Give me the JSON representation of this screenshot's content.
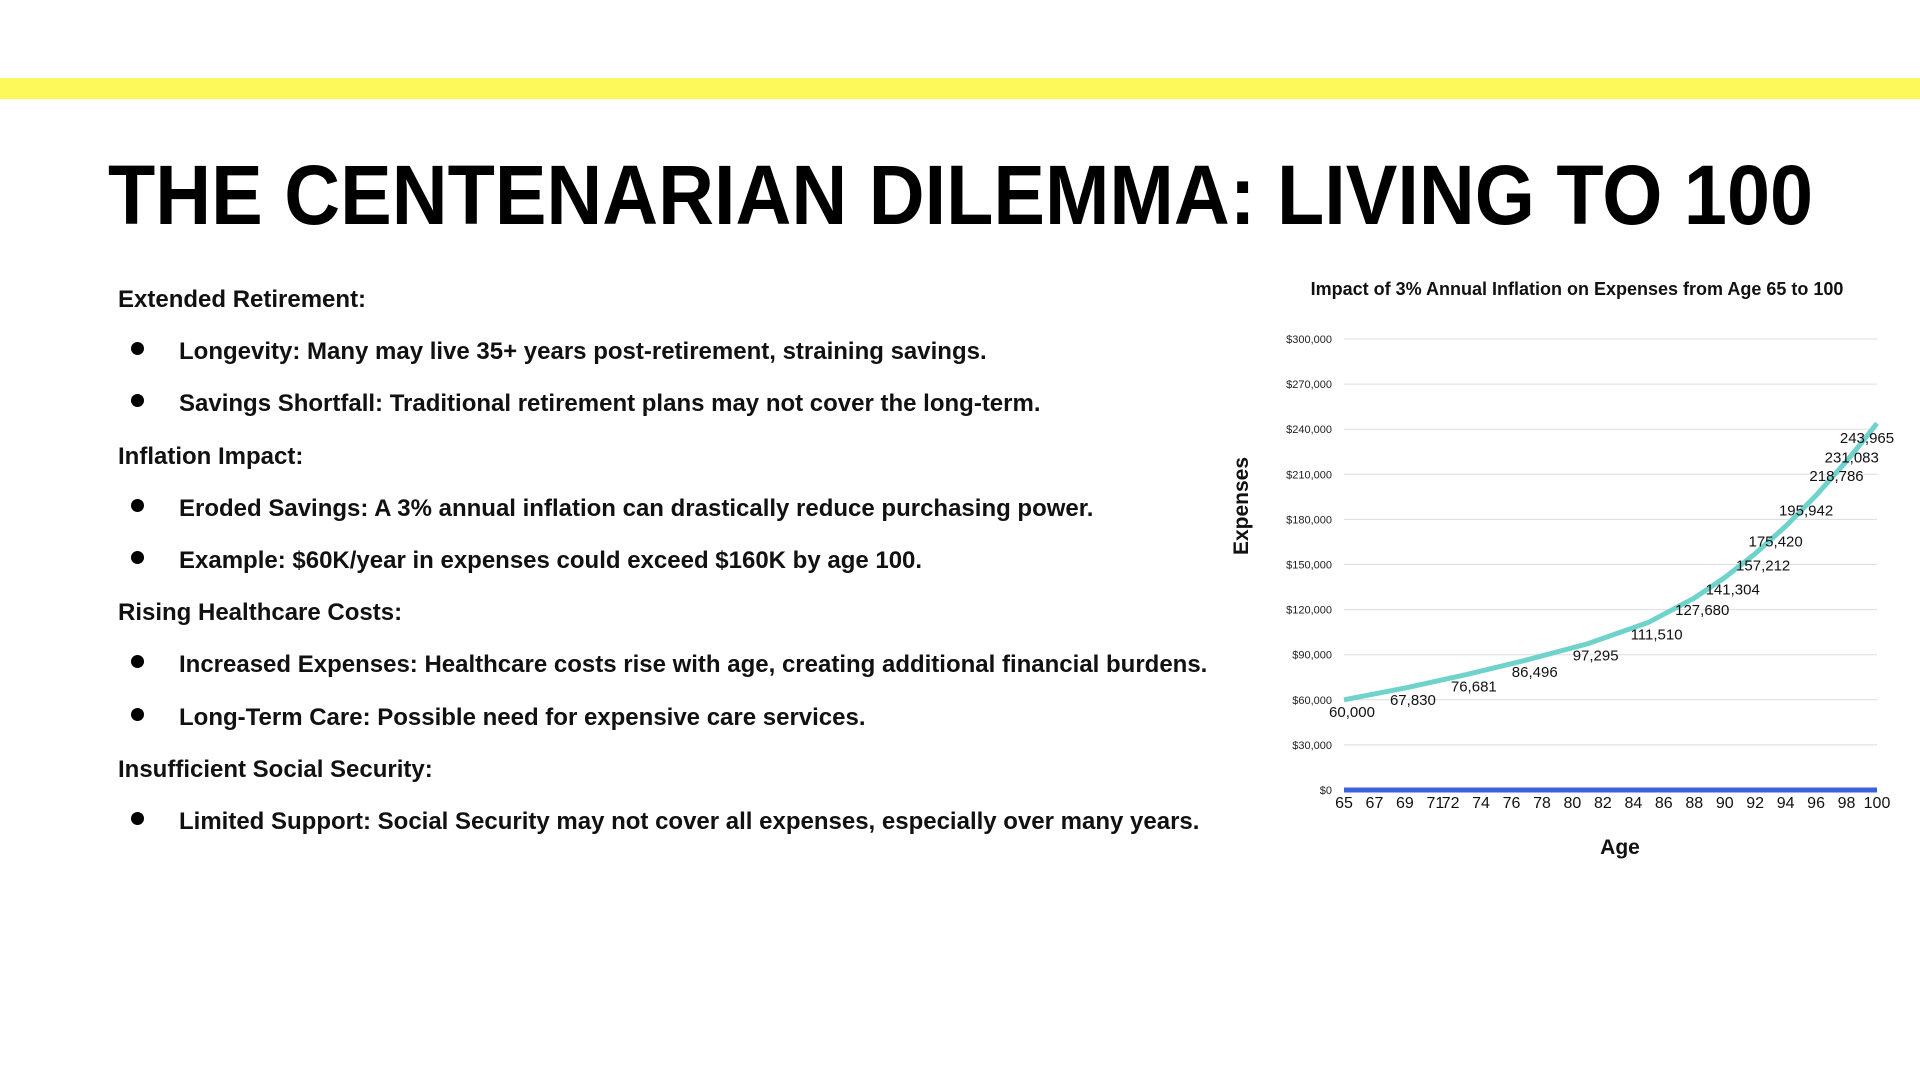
{
  "header": {
    "title": "THE CENTENARIAN DILEMMA: LIVING TO 100"
  },
  "sections": [
    {
      "heading": "Extended Retirement:",
      "bullets": [
        "Longevity: Many may live 35+ years post-retirement, straining savings.",
        "Savings Shortfall: Traditional retirement plans may not cover the long-term."
      ]
    },
    {
      "heading": "Inflation Impact:",
      "bullets": [
        "Eroded Savings: A 3% annual inflation can drastically reduce purchasing power.",
        "Example: $60K/year in expenses could exceed $160K by age 100."
      ]
    },
    {
      "heading": "Rising Healthcare Costs:",
      "bullets": [
        "Increased Expenses: Healthcare costs rise with age, creating additional financial burdens.",
        "Long-Term Care: Possible need for expensive care services."
      ]
    },
    {
      "heading": "Insufficient Social Security:",
      "bullets": [
        "Limited Support: Social Security may not cover all expenses, especially over many years."
      ]
    }
  ],
  "chart_data": {
    "type": "line",
    "title": "Impact of 3% Annual Inflation on Expenses from Age 65 to 100",
    "x_label": "Age",
    "y_label": "Expenses",
    "x": [
      65,
      69,
      73,
      77,
      81,
      85,
      88,
      90,
      92,
      94,
      96,
      98,
      99,
      100
    ],
    "series": [
      {
        "color": "#6fd3cc",
        "values": [
          60000,
          67830,
          76681,
          86496,
          97295,
          111510,
          127680,
          141304,
          157212,
          175420,
          195942,
          218786,
          231083,
          243965
        ],
        "value_labels": [
          "60,000",
          "67,830",
          "76,681",
          "86,496",
          "97,295",
          "111,510",
          "127,680",
          "141,304",
          "157,212",
          "175,420",
          "195,942",
          "218,786",
          "231,083",
          "243,965"
        ]
      }
    ],
    "xlim": [
      65,
      100
    ],
    "xticks": [
      65,
      67,
      69,
      71,
      72,
      74,
      76,
      78,
      80,
      82,
      84,
      86,
      88,
      90,
      92,
      94,
      96,
      98,
      100
    ],
    "ylim": [
      0,
      300000
    ],
    "yticks": [
      {
        "value": 0,
        "label": "$0"
      },
      {
        "value": 30000,
        "label": "$30,000"
      },
      {
        "value": 60000,
        "label": "$60,000"
      },
      {
        "value": 90000,
        "label": "$90,000"
      },
      {
        "value": 120000,
        "label": "$120,000"
      },
      {
        "value": 150000,
        "label": "$150,000"
      },
      {
        "value": 180000,
        "label": "$180,000"
      },
      {
        "value": 210000,
        "label": "$210,000"
      },
      {
        "value": 240000,
        "label": "$240,000"
      },
      {
        "value": 270000,
        "label": "$270,000"
      },
      {
        "value": 300000,
        "label": "$300,000"
      }
    ],
    "grid": true
  }
}
